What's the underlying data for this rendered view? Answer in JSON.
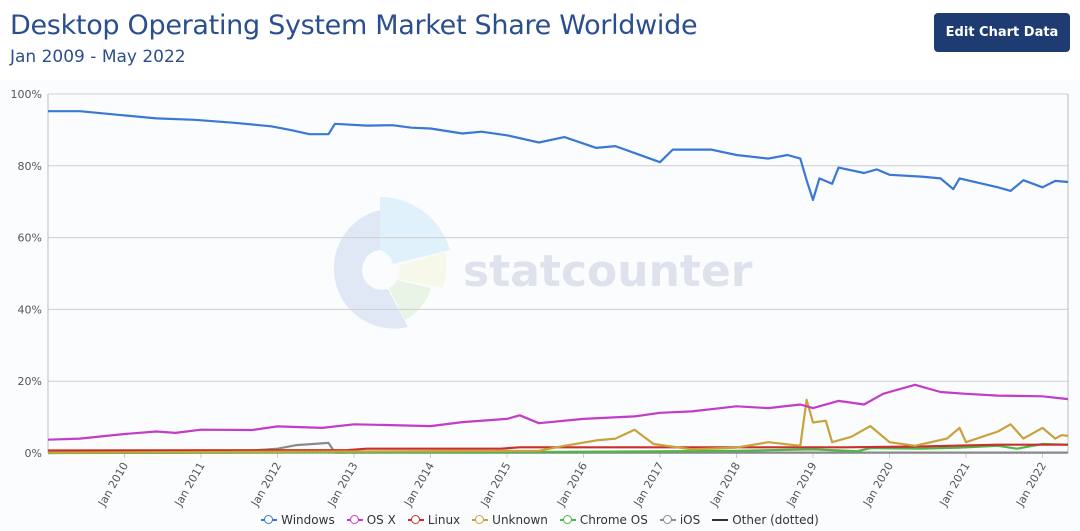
{
  "header": {
    "title": "Desktop Operating System Market Share Worldwide",
    "subtitle": "Jan 2009 - May 2022",
    "edit_button": "Edit Chart Data"
  },
  "watermark": "statcounter",
  "chart_data": {
    "type": "line",
    "title": "Desktop Operating System Market Share Worldwide",
    "subtitle": "Jan 2009 - May 2022",
    "xlim": [
      "2009-01",
      "2022-05"
    ],
    "ylim": [
      0,
      100
    ],
    "y_ticks": [
      "0%",
      "20%",
      "40%",
      "60%",
      "80%",
      "100%"
    ],
    "x_ticks": [
      "Jan 2010",
      "Jan 2011",
      "Jan 2012",
      "Jan 2013",
      "Jan 2014",
      "Jan 2015",
      "Jan 2016",
      "Jan 2017",
      "Jan 2018",
      "Jan 2019",
      "Jan 2020",
      "Jan 2021",
      "Jan 2022"
    ],
    "grid": true,
    "legend_position": "bottom",
    "series": [
      {
        "name": "Windows",
        "color": "#3a78d4",
        "points": [
          [
            "2009-01",
            95.2
          ],
          [
            "2009-06",
            95.2
          ],
          [
            "2009-12",
            94.2
          ],
          [
            "2010-06",
            93.2
          ],
          [
            "2010-12",
            92.8
          ],
          [
            "2011-06",
            92.0
          ],
          [
            "2011-12",
            91.0
          ],
          [
            "2012-03",
            90.0
          ],
          [
            "2012-06",
            88.8
          ],
          [
            "2012-09",
            88.8
          ],
          [
            "2012-10",
            91.7
          ],
          [
            "2013-03",
            91.2
          ],
          [
            "2013-07",
            91.3
          ],
          [
            "2013-10",
            90.6
          ],
          [
            "2014-01",
            90.4
          ],
          [
            "2014-06",
            89.0
          ],
          [
            "2014-09",
            89.5
          ],
          [
            "2015-01",
            88.5
          ],
          [
            "2015-06",
            86.5
          ],
          [
            "2015-10",
            88.0
          ],
          [
            "2016-03",
            85.0
          ],
          [
            "2016-06",
            85.5
          ],
          [
            "2017-01",
            81.0
          ],
          [
            "2017-03",
            84.5
          ],
          [
            "2017-09",
            84.5
          ],
          [
            "2018-01",
            83.0
          ],
          [
            "2018-06",
            82.0
          ],
          [
            "2018-09",
            83.0
          ],
          [
            "2018-11",
            82.0
          ],
          [
            "2018-12",
            76.0
          ],
          [
            "2019-01",
            70.5
          ],
          [
            "2019-02",
            76.5
          ],
          [
            "2019-04",
            75.0
          ],
          [
            "2019-05",
            79.5
          ],
          [
            "2019-09",
            78.0
          ],
          [
            "2019-11",
            79.0
          ],
          [
            "2020-01",
            77.5
          ],
          [
            "2020-06",
            77.0
          ],
          [
            "2020-09",
            76.5
          ],
          [
            "2020-11",
            73.5
          ],
          [
            "2020-12",
            76.5
          ],
          [
            "2021-06",
            74.0
          ],
          [
            "2021-08",
            73.0
          ],
          [
            "2021-10",
            76.0
          ],
          [
            "2022-01",
            74.0
          ],
          [
            "2022-03",
            75.8
          ],
          [
            "2022-05",
            75.5
          ]
        ]
      },
      {
        "name": "OS X",
        "color": "#c33cc7",
        "points": [
          [
            "2009-01",
            3.7
          ],
          [
            "2009-06",
            4.0
          ],
          [
            "2010-01",
            5.3
          ],
          [
            "2010-06",
            6.0
          ],
          [
            "2010-09",
            5.6
          ],
          [
            "2011-01",
            6.5
          ],
          [
            "2011-09",
            6.4
          ],
          [
            "2012-01",
            7.4
          ],
          [
            "2012-08",
            7.0
          ],
          [
            "2013-01",
            8.0
          ],
          [
            "2013-06",
            7.8
          ],
          [
            "2014-01",
            7.5
          ],
          [
            "2014-06",
            8.6
          ],
          [
            "2015-01",
            9.5
          ],
          [
            "2015-03",
            10.5
          ],
          [
            "2015-06",
            8.3
          ],
          [
            "2016-01",
            9.5
          ],
          [
            "2016-09",
            10.2
          ],
          [
            "2017-01",
            11.2
          ],
          [
            "2017-06",
            11.6
          ],
          [
            "2018-01",
            13.0
          ],
          [
            "2018-06",
            12.5
          ],
          [
            "2018-11",
            13.5
          ],
          [
            "2019-01",
            12.5
          ],
          [
            "2019-05",
            14.5
          ],
          [
            "2019-09",
            13.5
          ],
          [
            "2019-12",
            16.5
          ],
          [
            "2020-05",
            19.0
          ],
          [
            "2020-09",
            17.0
          ],
          [
            "2021-01",
            16.5
          ],
          [
            "2021-06",
            16.0
          ],
          [
            "2022-01",
            15.8
          ],
          [
            "2022-05",
            15.0
          ]
        ]
      },
      {
        "name": "Linux",
        "color": "#c9302c",
        "points": [
          [
            "2009-01",
            0.7
          ],
          [
            "2012-12",
            0.8
          ],
          [
            "2013-03",
            1.2
          ],
          [
            "2014-12",
            1.2
          ],
          [
            "2015-03",
            1.6
          ],
          [
            "2019-06",
            1.6
          ],
          [
            "2020-06",
            1.8
          ],
          [
            "2021-06",
            2.3
          ],
          [
            "2022-05",
            2.3
          ]
        ]
      },
      {
        "name": "Unknown",
        "color": "#c8a23c",
        "points": [
          [
            "2009-01",
            0.1
          ],
          [
            "2015-06",
            0.6
          ],
          [
            "2015-10",
            2.0
          ],
          [
            "2016-03",
            3.5
          ],
          [
            "2016-06",
            4.0
          ],
          [
            "2016-09",
            6.5
          ],
          [
            "2016-12",
            2.5
          ],
          [
            "2017-06",
            1.0
          ],
          [
            "2018-01",
            1.5
          ],
          [
            "2018-06",
            3.0
          ],
          [
            "2018-11",
            2.0
          ],
          [
            "2018-12",
            14.8
          ],
          [
            "2019-01",
            8.5
          ],
          [
            "2019-03",
            9.0
          ],
          [
            "2019-04",
            3.0
          ],
          [
            "2019-07",
            4.5
          ],
          [
            "2019-10",
            7.5
          ],
          [
            "2020-01",
            3.0
          ],
          [
            "2020-05",
            2.0
          ],
          [
            "2020-10",
            4.0
          ],
          [
            "2020-12",
            7.0
          ],
          [
            "2021-01",
            3.0
          ],
          [
            "2021-06",
            6.0
          ],
          [
            "2021-08",
            8.0
          ],
          [
            "2021-10",
            4.0
          ],
          [
            "2022-01",
            7.0
          ],
          [
            "2022-03",
            4.0
          ],
          [
            "2022-04",
            5.0
          ],
          [
            "2022-05",
            4.8
          ]
        ]
      },
      {
        "name": "Chrome OS",
        "color": "#4cb848",
        "points": [
          [
            "2009-01",
            0.0
          ],
          [
            "2014-06",
            0.2
          ],
          [
            "2016-06",
            0.4
          ],
          [
            "2018-01",
            0.6
          ],
          [
            "2019-01",
            1.0
          ],
          [
            "2019-08",
            0.5
          ],
          [
            "2019-10",
            1.4
          ],
          [
            "2020-06",
            1.2
          ],
          [
            "2020-12",
            1.5
          ],
          [
            "2021-06",
            2.0
          ],
          [
            "2021-09",
            1.2
          ],
          [
            "2022-01",
            2.5
          ],
          [
            "2022-05",
            2.3
          ]
        ]
      },
      {
        "name": "iOS",
        "color": "#8a8a8a",
        "points": [
          [
            "2009-01",
            0.0
          ],
          [
            "2011-06",
            0.3
          ],
          [
            "2012-01",
            1.2
          ],
          [
            "2012-04",
            2.2
          ],
          [
            "2012-09",
            2.8
          ],
          [
            "2012-10",
            0.1
          ],
          [
            "2022-05",
            0.1
          ]
        ]
      },
      {
        "name": "Other (dotted)",
        "color": "#333333",
        "dotted": true,
        "points": [
          [
            "2009-01",
            0.1
          ],
          [
            "2022-05",
            0.1
          ]
        ]
      }
    ]
  }
}
